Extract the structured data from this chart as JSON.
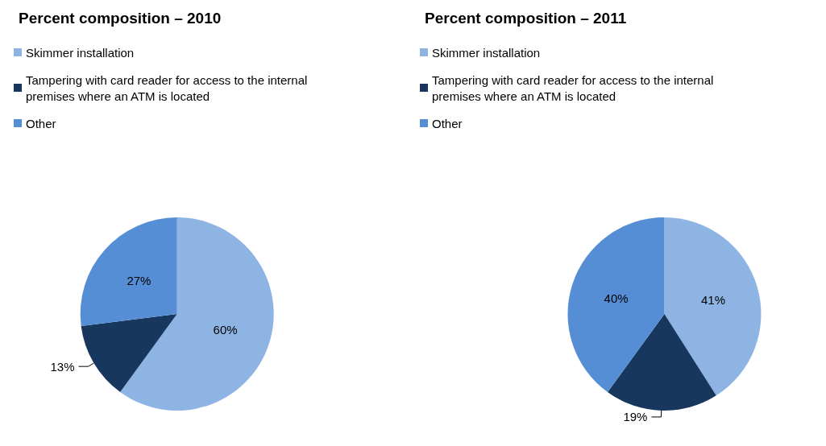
{
  "chart_data": [
    {
      "type": "pie",
      "title": "Percent composition – 2010",
      "categories": [
        "Skimmer installation",
        "Tampering with card reader for access to the internal premises where an ATM is located",
        "Other"
      ],
      "values": [
        60,
        13,
        27
      ],
      "value_labels": [
        "60%",
        "13%",
        "27%"
      ],
      "colors": [
        "#8eb4e3",
        "#17375e",
        "#558ed5"
      ],
      "legend": "top left"
    },
    {
      "type": "pie",
      "title": "Percent composition – 2011",
      "categories": [
        "Skimmer installation",
        "Tampering with card reader for access to the internal premises where an ATM is located",
        "Other"
      ],
      "values": [
        41,
        19,
        40
      ],
      "value_labels": [
        "41%",
        "19%",
        "40%"
      ],
      "colors": [
        "#8eb4e3",
        "#17375e",
        "#558ed5"
      ],
      "legend": "top left"
    }
  ]
}
